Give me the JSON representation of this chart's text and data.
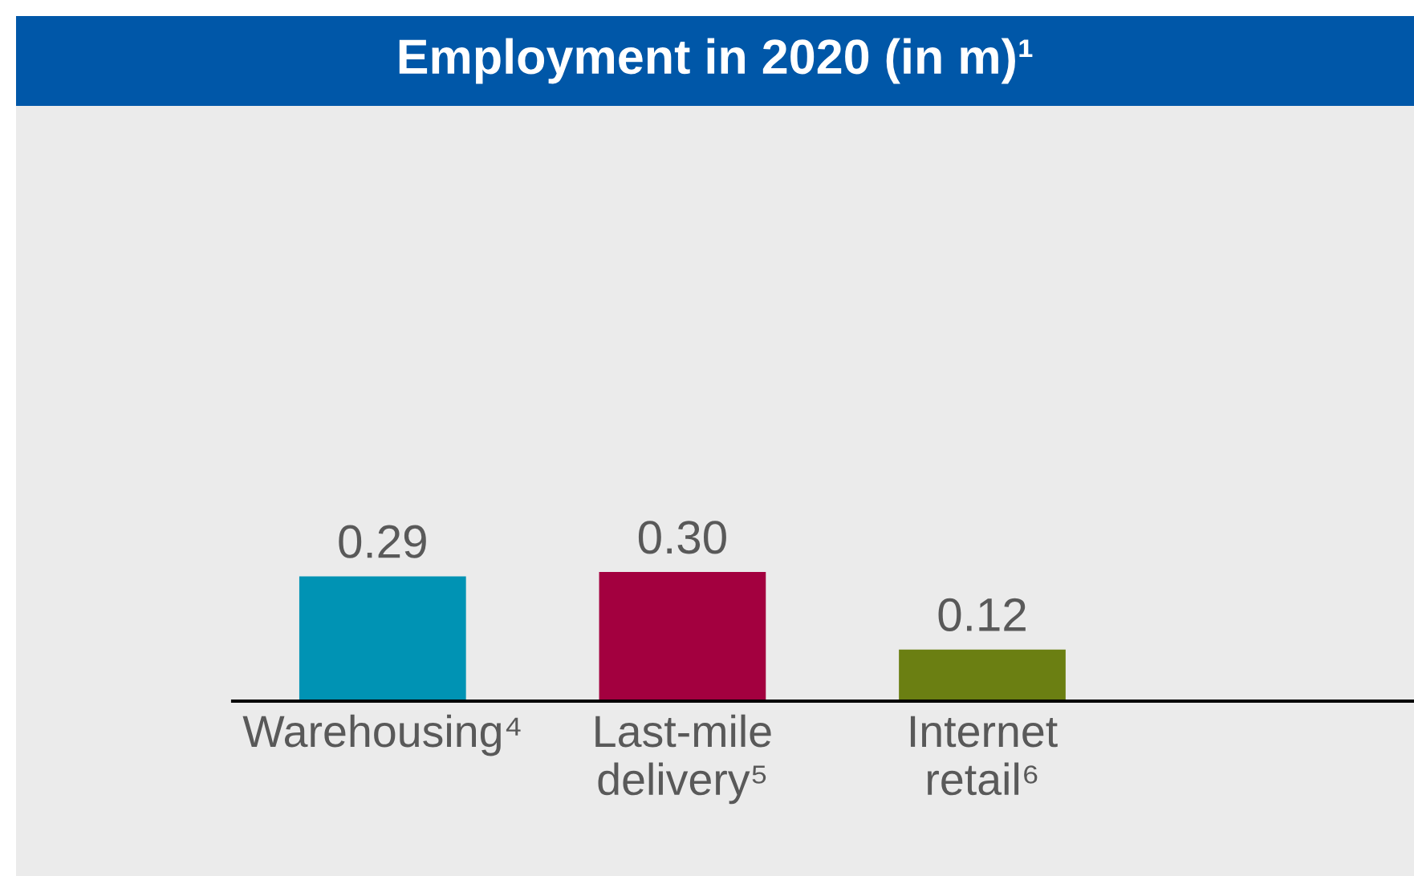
{
  "chart_data": {
    "type": "bar",
    "title": "Employment in 2020 (in m)¹",
    "categories": [
      "Warehousing⁴",
      "Last-mile\ndelivery⁵",
      "Internet\nretail⁶"
    ],
    "values": [
      0.29,
      0.3,
      0.12
    ],
    "value_labels": [
      "0.29",
      "0.30",
      "0.12"
    ],
    "colors": [
      "#0093b4",
      "#a3003f",
      "#6b7f12"
    ]
  }
}
